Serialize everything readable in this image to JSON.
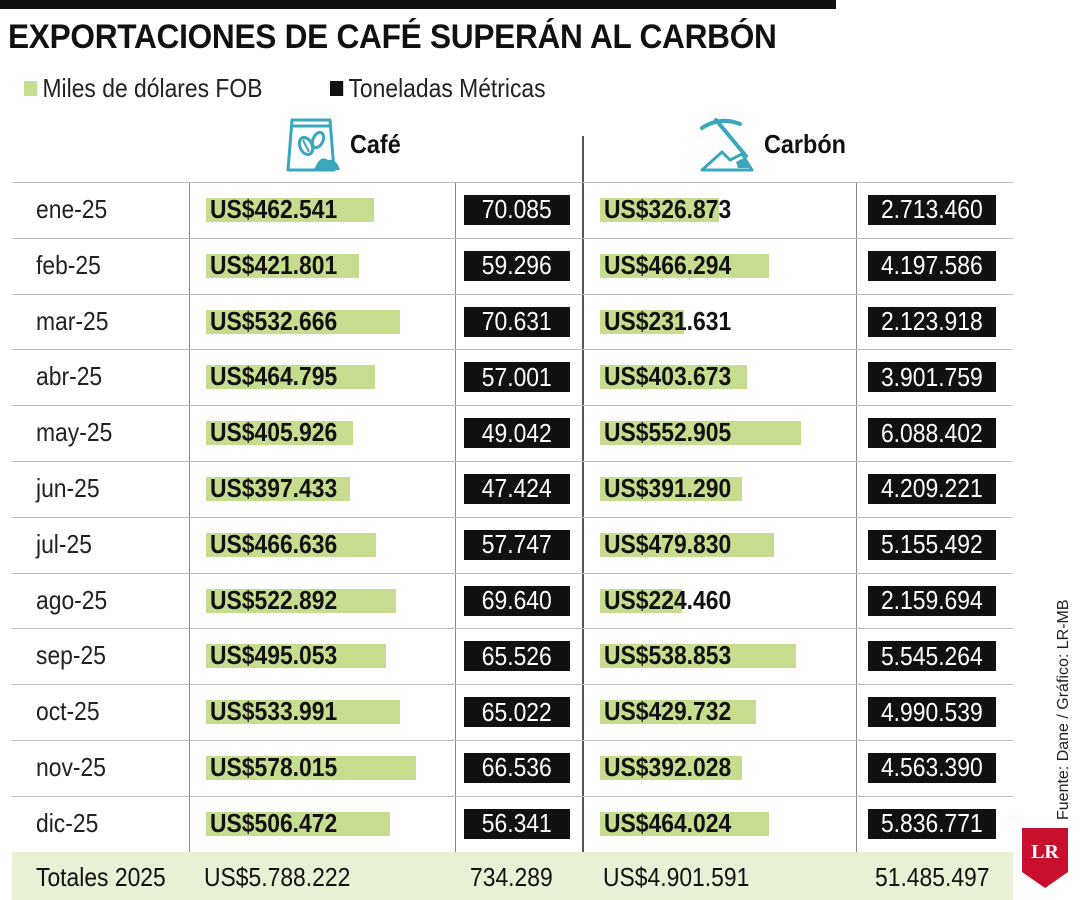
{
  "title": "EXPORTACIONES DE CAFÉ SUPERÁN AL CARBÓN",
  "legend": {
    "usd_label": "Miles de dólares FOB",
    "ton_label": "Toneladas Métricas",
    "usd_color": "#c6dd8f",
    "ton_color": "#111111"
  },
  "columns": {
    "cafe": "Café",
    "carbon": "Carbón",
    "cafe_icon": "coffee-bag-icon",
    "carbon_icon": "pickaxe-coal-icon"
  },
  "source": "Fuente: Dane / Gráfico: LR-MB",
  "logo_text": "LR",
  "totals": {
    "label": "Totales 2025",
    "cafe_usd": "US$5.788.222",
    "cafe_ton": "734.289",
    "carbon_usd": "US$4.901.591",
    "carbon_ton": "51.485.497"
  },
  "chart_data": {
    "type": "table",
    "categories": [
      "ene-25",
      "feb-25",
      "mar-25",
      "abr-25",
      "may-25",
      "jun-25",
      "jul-25",
      "ago-25",
      "sep-25",
      "oct-25",
      "nov-25",
      "dic-25"
    ],
    "rows": [
      {
        "month": "ene-25",
        "cafe_usd": "US$462.541",
        "cafe_usd_value": 462541,
        "cafe_ton": "70.085",
        "carbon_usd": "US$326.873",
        "carbon_usd_value": 326873,
        "carbon_ton": "2.713.460"
      },
      {
        "month": "feb-25",
        "cafe_usd": "US$421.801",
        "cafe_usd_value": 421801,
        "cafe_ton": "59.296",
        "carbon_usd": "US$466.294",
        "carbon_usd_value": 466294,
        "carbon_ton": "4.197.586"
      },
      {
        "month": "mar-25",
        "cafe_usd": "US$532.666",
        "cafe_usd_value": 532666,
        "cafe_ton": "70.631",
        "carbon_usd": "US$231.631",
        "carbon_usd_value": 231631,
        "carbon_ton": "2.123.918"
      },
      {
        "month": "abr-25",
        "cafe_usd": "US$464.795",
        "cafe_usd_value": 464795,
        "cafe_ton": "57.001",
        "carbon_usd": "US$403.673",
        "carbon_usd_value": 403673,
        "carbon_ton": "3.901.759"
      },
      {
        "month": "may-25",
        "cafe_usd": "US$405.926",
        "cafe_usd_value": 405926,
        "cafe_ton": "49.042",
        "carbon_usd": "US$552.905",
        "carbon_usd_value": 552905,
        "carbon_ton": "6.088.402"
      },
      {
        "month": "jun-25",
        "cafe_usd": "US$397.433",
        "cafe_usd_value": 397433,
        "cafe_ton": "47.424",
        "carbon_usd": "US$391.290",
        "carbon_usd_value": 391290,
        "carbon_ton": "4.209.221"
      },
      {
        "month": "jul-25",
        "cafe_usd": "US$466.636",
        "cafe_usd_value": 466636,
        "cafe_ton": "57.747",
        "carbon_usd": "US$479.830",
        "carbon_usd_value": 479830,
        "carbon_ton": "5.155.492"
      },
      {
        "month": "ago-25",
        "cafe_usd": "US$522.892",
        "cafe_usd_value": 522892,
        "cafe_ton": "69.640",
        "carbon_usd": "US$224.460",
        "carbon_usd_value": 224460,
        "carbon_ton": "2.159.694"
      },
      {
        "month": "sep-25",
        "cafe_usd": "US$495.053",
        "cafe_usd_value": 495053,
        "cafe_ton": "65.526",
        "carbon_usd": "US$538.853",
        "carbon_usd_value": 538853,
        "carbon_ton": "5.545.264"
      },
      {
        "month": "oct-25",
        "cafe_usd": "US$533.991",
        "cafe_usd_value": 533991,
        "cafe_ton": "65.022",
        "carbon_usd": "US$429.732",
        "carbon_usd_value": 429732,
        "carbon_ton": "4.990.539"
      },
      {
        "month": "nov-25",
        "cafe_usd": "US$578.015",
        "cafe_usd_value": 578015,
        "cafe_ton": "66.536",
        "carbon_usd": "US$392.028",
        "carbon_usd_value": 392028,
        "carbon_ton": "4.563.390"
      },
      {
        "month": "dic-25",
        "cafe_usd": "US$506.472",
        "cafe_usd_value": 506472,
        "cafe_ton": "56.341",
        "carbon_usd": "US$464.024",
        "carbon_usd_value": 464024,
        "carbon_ton": "5.836.771"
      }
    ],
    "bar_scale_max": 578015,
    "grid": true
  }
}
